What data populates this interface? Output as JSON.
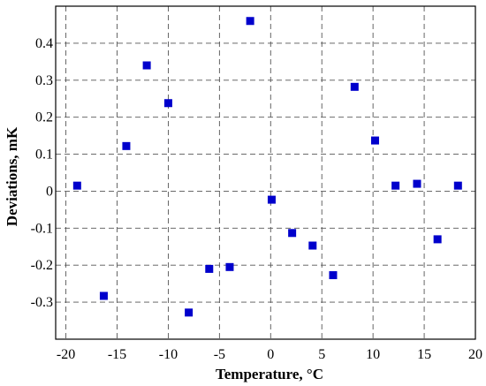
{
  "chart_data": {
    "type": "scatter",
    "title": "",
    "xlabel": "Temperature, °C",
    "ylabel": "Deviations, mK",
    "xlim": [
      -21,
      20
    ],
    "ylim": [
      -0.4,
      0.5
    ],
    "xticks": [
      -20,
      -15,
      -10,
      -5,
      0,
      5,
      10,
      15,
      20
    ],
    "yticks": [
      -0.3,
      -0.2,
      -0.1,
      0,
      0.1,
      0.2,
      0.3,
      0.4
    ],
    "xtick_labels": [
      "-20",
      "-15",
      "-10",
      "-5",
      "0",
      "5",
      "10",
      "15",
      "20"
    ],
    "ytick_labels": [
      "-0.3",
      "-0.2",
      "-0.1",
      "0",
      "0.1",
      "0.2",
      "0.3",
      "0.4"
    ],
    "grid": true,
    "marker": "square",
    "color": "#0000cc",
    "series": [
      {
        "x": [
          -18.9,
          -16.3,
          -14.1,
          -12.1,
          -10.0,
          -8.0,
          -6.0,
          -4.0,
          -2.0,
          0.1,
          2.1,
          4.1,
          6.1,
          8.2,
          10.2,
          12.2,
          14.3,
          16.3,
          18.3
        ],
        "y": [
          0.015,
          -0.283,
          0.122,
          0.34,
          0.238,
          -0.328,
          -0.21,
          -0.205,
          0.46,
          -0.023,
          -0.113,
          -0.147,
          -0.227,
          0.282,
          0.137,
          0.015,
          0.02,
          -0.13,
          0.015
        ]
      }
    ]
  }
}
